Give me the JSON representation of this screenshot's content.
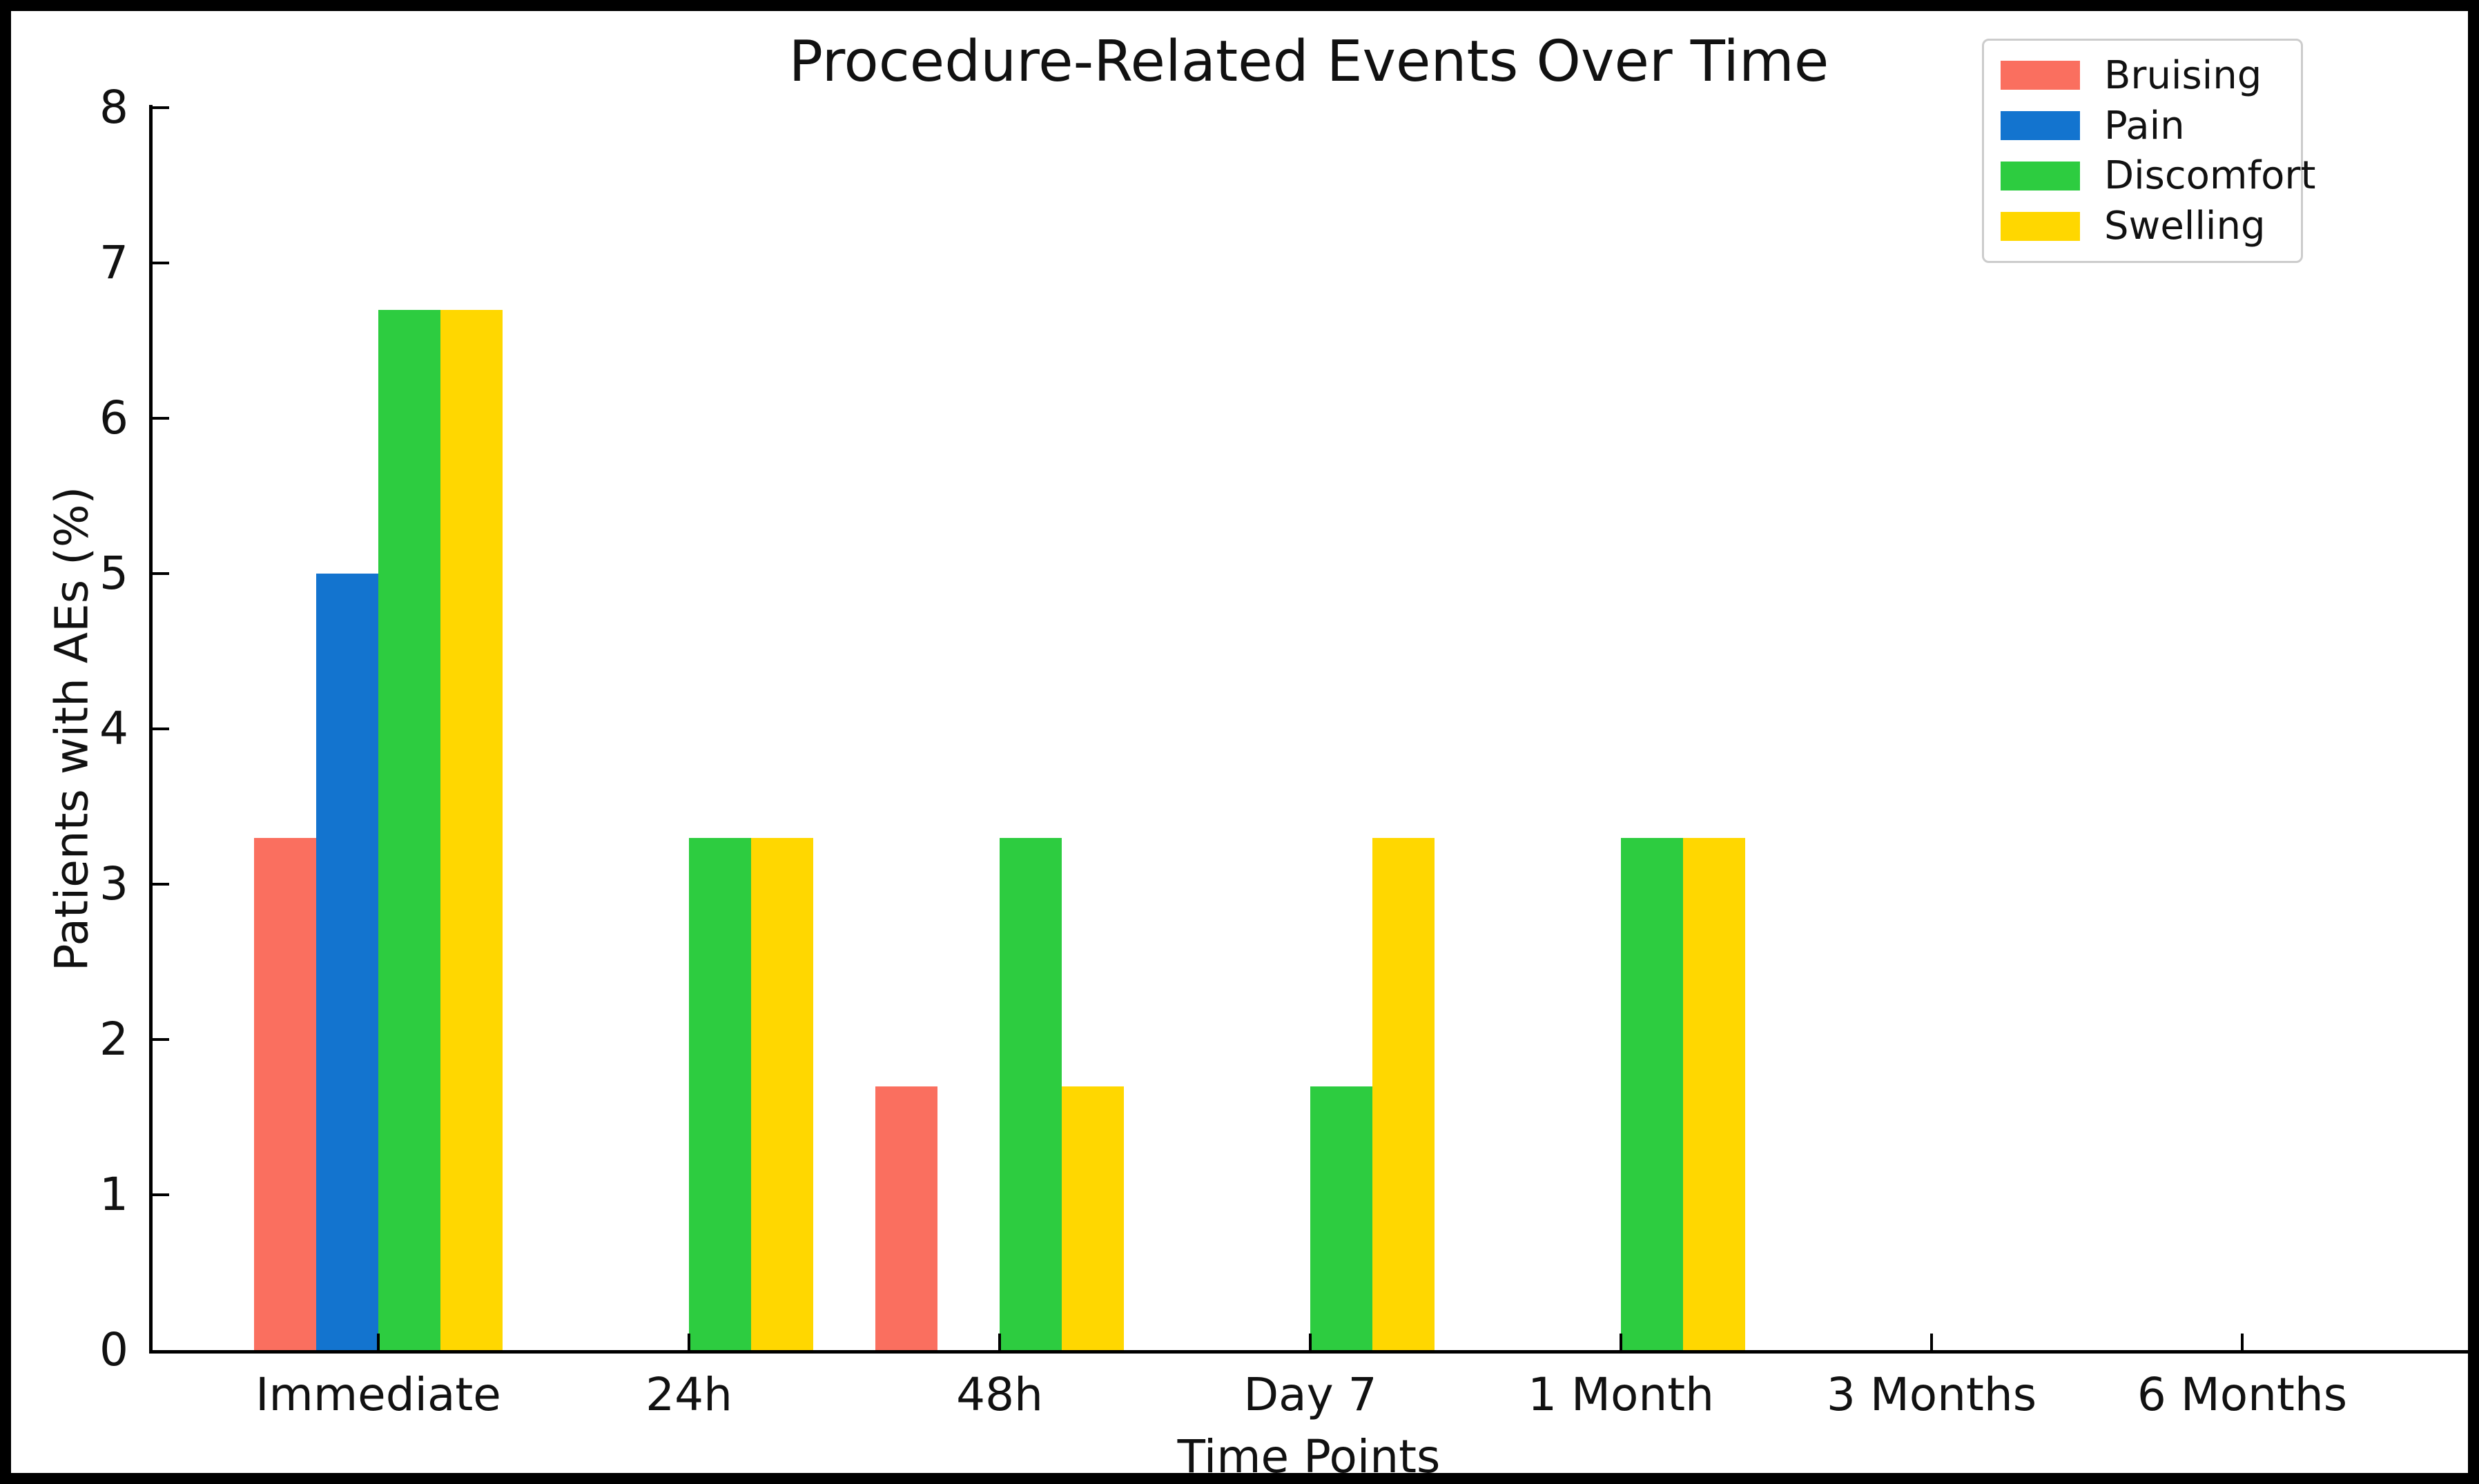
{
  "window": {
    "background_color": "#ffffff",
    "border_color": "#000000",
    "text_color": "#111111"
  },
  "chart_data": {
    "type": "bar",
    "title": "Procedure-Related Events Over Time",
    "xlabel": "Time Points",
    "ylabel": "Patients with AEs (%)",
    "categories": [
      "Immediate",
      "24h",
      "48h",
      "Day 7",
      "1 Month",
      "3 Months",
      "6 Months"
    ],
    "series": [
      {
        "name": "Bruising",
        "color": "#FA6F5F",
        "values": [
          3.3,
          0,
          1.7,
          0,
          0,
          0,
          0
        ]
      },
      {
        "name": "Pain",
        "color": "#1374CF",
        "values": [
          5.0,
          0,
          0,
          0,
          0,
          0,
          0
        ]
      },
      {
        "name": "Discomfort",
        "color": "#2DCC40",
        "values": [
          6.7,
          3.3,
          3.3,
          1.7,
          3.3,
          0,
          0
        ]
      },
      {
        "name": "Swelling",
        "color": "#FFD700",
        "values": [
          6.7,
          3.3,
          1.7,
          3.3,
          3.3,
          0,
          0
        ]
      }
    ],
    "ylim": [
      0,
      8
    ],
    "yticks": [
      0,
      1,
      2,
      3,
      4,
      5,
      6,
      7,
      8
    ],
    "grid": false,
    "legend_position": "upper right",
    "spines": [
      "left",
      "bottom"
    ],
    "tick_direction": "in"
  }
}
